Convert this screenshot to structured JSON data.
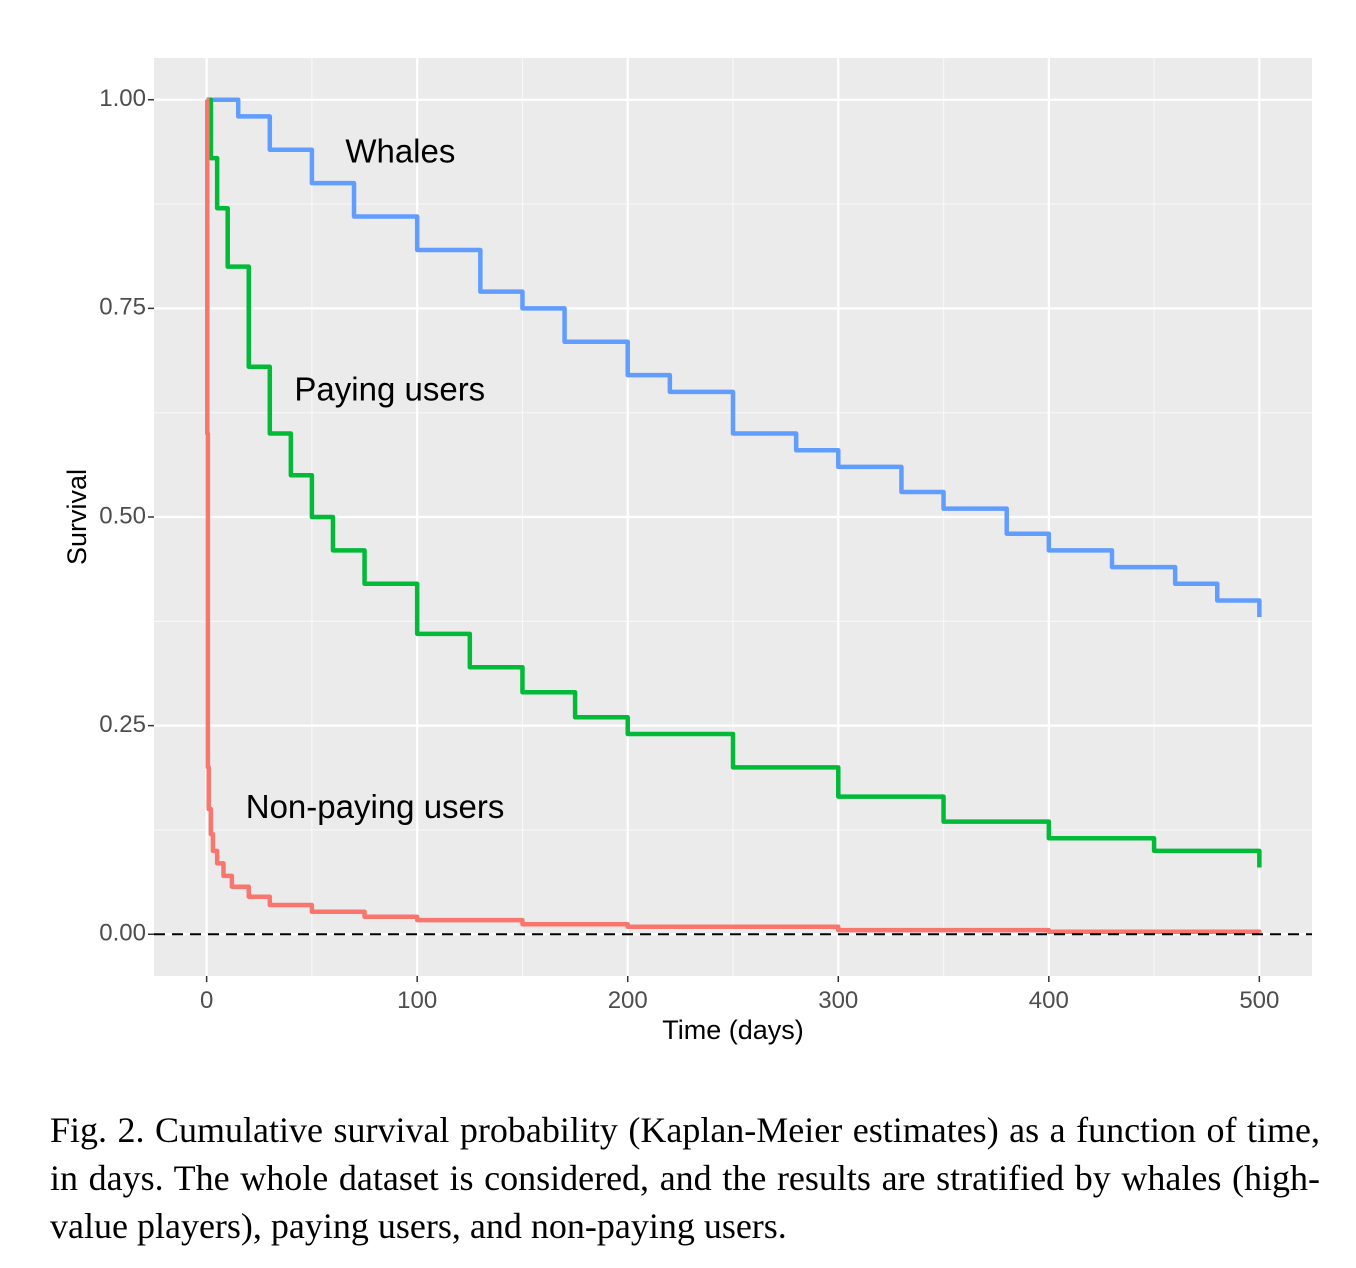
{
  "chart_data": {
    "type": "line",
    "title": "",
    "xlabel": "Time (days)",
    "ylabel": "Survival",
    "xlim": [
      -25,
      525
    ],
    "ylim": [
      -0.05,
      1.05
    ],
    "x_ticks": [
      0,
      100,
      200,
      300,
      400,
      500
    ],
    "y_ticks": [
      0.0,
      0.25,
      0.5,
      0.75,
      1.0
    ],
    "x_tick_labels": [
      "0",
      "100",
      "200",
      "300",
      "400",
      "500"
    ],
    "y_tick_labels": [
      "0.00",
      "0.25",
      "0.50",
      "0.75",
      "1.00"
    ],
    "grid": true,
    "reference_line": {
      "y": 0,
      "style": "dashed"
    },
    "background": "#ebebeb",
    "series": [
      {
        "name": "Whales",
        "color": "#619cff",
        "x": [
          0,
          5,
          15,
          30,
          50,
          70,
          100,
          130,
          150,
          170,
          200,
          220,
          250,
          280,
          300,
          330,
          350,
          380,
          400,
          430,
          460,
          480,
          500
        ],
        "y": [
          1.0,
          1.0,
          0.98,
          0.94,
          0.9,
          0.86,
          0.82,
          0.77,
          0.75,
          0.71,
          0.67,
          0.65,
          0.6,
          0.58,
          0.56,
          0.53,
          0.51,
          0.48,
          0.46,
          0.44,
          0.42,
          0.4,
          0.38
        ]
      },
      {
        "name": "Paying users",
        "color": "#00ba38",
        "x": [
          0,
          2,
          5,
          10,
          20,
          30,
          40,
          50,
          60,
          75,
          100,
          125,
          150,
          175,
          200,
          250,
          300,
          350,
          400,
          450,
          500
        ],
        "y": [
          1.0,
          0.93,
          0.87,
          0.8,
          0.68,
          0.6,
          0.55,
          0.5,
          0.46,
          0.42,
          0.36,
          0.32,
          0.29,
          0.26,
          0.24,
          0.2,
          0.165,
          0.135,
          0.115,
          0.1,
          0.08
        ]
      },
      {
        "name": "Non-paying users",
        "color": "#f8766d",
        "x": [
          0,
          0.3,
          0.6,
          1,
          2,
          3,
          5,
          8,
          12,
          20,
          30,
          50,
          75,
          100,
          150,
          200,
          300,
          400,
          500
        ],
        "y": [
          1.0,
          0.6,
          0.2,
          0.15,
          0.12,
          0.1,
          0.085,
          0.07,
          0.057,
          0.045,
          0.035,
          0.027,
          0.021,
          0.017,
          0.012,
          0.009,
          0.005,
          0.003,
          0.002
        ]
      }
    ],
    "annotations": [
      {
        "text": "Whales",
        "x": 92,
        "y": 0.935,
        "anchor": "middle"
      },
      {
        "text": "Paying users",
        "x": 87,
        "y": 0.65,
        "anchor": "middle"
      },
      {
        "text": "Non-paying users",
        "x": 80,
        "y": 0.15,
        "anchor": "middle"
      }
    ]
  },
  "caption": "Fig. 2.  Cumulative survival probability (Kaplan-Meier estimates) as a function of time, in days. The whole dataset is considered, and the results are stratified by whales (high-value players), paying users, and non-paying users."
}
